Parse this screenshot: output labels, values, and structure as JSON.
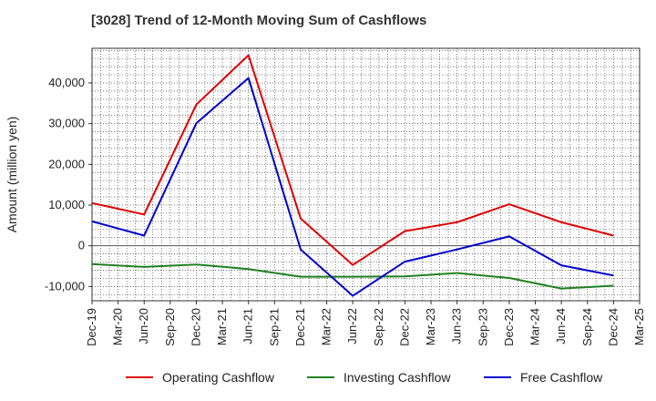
{
  "chart_data": {
    "type": "line",
    "title": "[3028]  Trend of 12-Month Moving Sum of Cashflows",
    "ylabel": "Amount (million yen)",
    "xlabel": "",
    "categories": [
      "Dec-19",
      "Mar-20",
      "Jun-20",
      "Sep-20",
      "Dec-20",
      "Mar-21",
      "Jun-21",
      "Sep-21",
      "Dec-21",
      "Mar-22",
      "Jun-22",
      "Sep-22",
      "Dec-22",
      "Mar-23",
      "Jun-23",
      "Sep-23",
      "Dec-23",
      "Mar-24",
      "Jun-24",
      "Sep-24",
      "Dec-24",
      "Mar-25"
    ],
    "yticks": [
      -10000,
      0,
      10000,
      20000,
      30000,
      40000
    ],
    "ytick_labels": [
      "-10,000",
      "0",
      "10,000",
      "20,000",
      "30,000",
      "40,000"
    ],
    "ylim": [
      -13500,
      48500
    ],
    "grid": true,
    "legend_position": "bottom",
    "series": [
      {
        "name": "Operating Cashflow",
        "color": "#e00000",
        "points": [
          [
            "Dec-19",
            10500
          ],
          [
            "Jun-20",
            7700
          ],
          [
            "Dec-20",
            34700
          ],
          [
            "Jun-21",
            46800
          ],
          [
            "Dec-21",
            6700
          ],
          [
            "Jun-22",
            -4700
          ],
          [
            "Dec-22",
            3600
          ],
          [
            "Jun-23",
            5800
          ],
          [
            "Dec-23",
            10200
          ],
          [
            "Jun-24",
            5800
          ],
          [
            "Dec-24",
            2500
          ]
        ]
      },
      {
        "name": "Investing Cashflow",
        "color": "#208020",
        "points": [
          [
            "Dec-19",
            -4500
          ],
          [
            "Jun-20",
            -5200
          ],
          [
            "Dec-20",
            -4600
          ],
          [
            "Jun-21",
            -5700
          ],
          [
            "Dec-21",
            -7600
          ],
          [
            "Jun-22",
            -7600
          ],
          [
            "Dec-22",
            -7500
          ],
          [
            "Jun-23",
            -6700
          ],
          [
            "Dec-23",
            -7900
          ],
          [
            "Jun-24",
            -10500
          ],
          [
            "Dec-24",
            -9800
          ]
        ]
      },
      {
        "name": "Free Cashflow",
        "color": "#0000cc",
        "points": [
          [
            "Dec-19",
            6000
          ],
          [
            "Jun-20",
            2500
          ],
          [
            "Dec-20",
            30100
          ],
          [
            "Jun-21",
            41200
          ],
          [
            "Dec-21",
            -900
          ],
          [
            "Jun-22",
            -12300
          ],
          [
            "Dec-22",
            -3900
          ],
          [
            "Jun-23",
            -900
          ],
          [
            "Dec-23",
            2300
          ],
          [
            "Jun-24",
            -4800
          ],
          [
            "Dec-24",
            -7300
          ]
        ]
      }
    ]
  }
}
